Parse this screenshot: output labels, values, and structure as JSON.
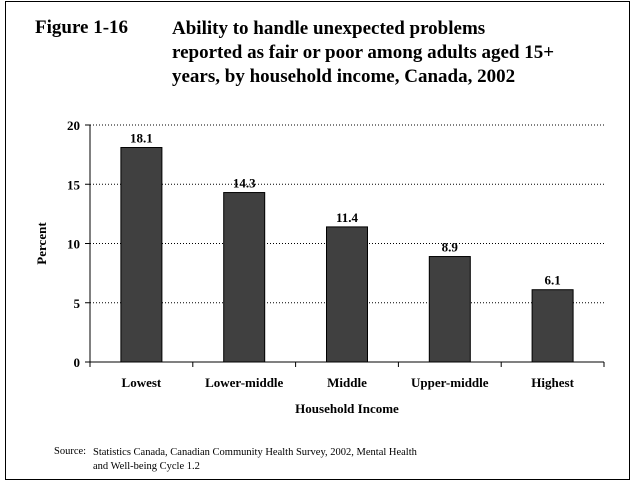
{
  "figure": {
    "number": "Figure 1-16",
    "title": "Ability to handle unexpected problems\nreported as fair or poor among adults aged 15+\nyears, by household income, Canada, 2002"
  },
  "source": {
    "label": "Source:",
    "text": "Statistics Canada, Canadian Community Health Survey, 2002, Mental Health\nand Well-being Cycle 1.2"
  },
  "chart_data": {
    "type": "bar",
    "categories": [
      "Lowest",
      "Lower-middle",
      "Middle",
      "Upper-middle",
      "Highest"
    ],
    "values": [
      18.1,
      14.3,
      11.4,
      8.9,
      6.1
    ],
    "data_labels": [
      "18.1",
      "14.3",
      "11.4",
      "8.9",
      "6.1"
    ],
    "title": "",
    "xlabel": "Household Income",
    "ylabel": "Percent",
    "ylim": [
      0,
      20
    ],
    "yticks": [
      0,
      5,
      10,
      15,
      20
    ],
    "grid": true,
    "bar_color": "#404040"
  }
}
